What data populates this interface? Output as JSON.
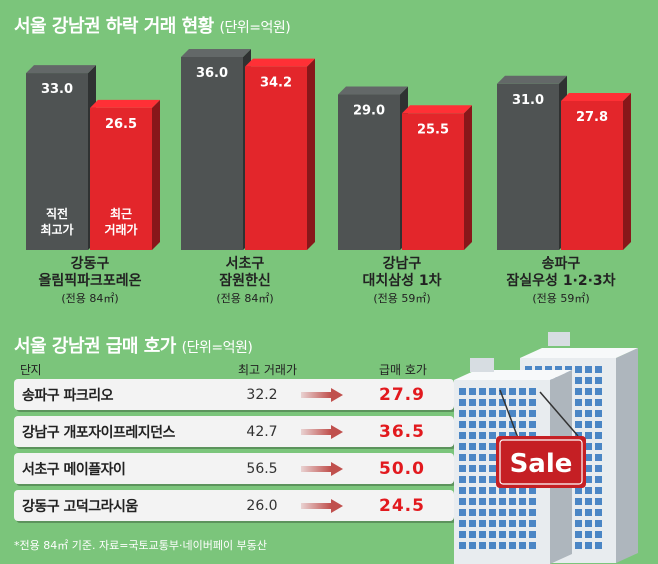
{
  "chart_title": "서울 강남권 하락 거래 현황",
  "chart_unit": "(단위=억원)",
  "chart_data": {
    "type": "bar",
    "title": "서울 강남권 하락 거래 현황",
    "unit": "단위=억원",
    "categories": [
      {
        "district": "강동구",
        "complex": "올림픽파크포레온",
        "area": "(전용 84㎡)"
      },
      {
        "district": "서초구",
        "complex": "잠원한신",
        "area": "(전용 84㎡)"
      },
      {
        "district": "강남구",
        "complex": "대치삼성 1차",
        "area": "(전용 59㎡)"
      },
      {
        "district": "송파구",
        "complex": "잠실우성 1·2·3차",
        "area": "(전용 59㎡)"
      }
    ],
    "series": [
      {
        "name": "직전 최고가",
        "label_lines": [
          "직전",
          "최고가"
        ],
        "color": "#4f5353",
        "values": [
          33.0,
          36.0,
          29.0,
          31.0
        ]
      },
      {
        "name": "최근 거래가",
        "label_lines": [
          "최근",
          "거래가"
        ],
        "color": "#e3262b",
        "values": [
          26.5,
          34.2,
          25.5,
          27.8
        ]
      }
    ]
  },
  "table": {
    "title": "서울 강남권 급매 호가",
    "unit": "(단위=억원)",
    "headers": {
      "name": "단지",
      "top": "최고 거래가",
      "sale": "급매 호가"
    },
    "rows": [
      {
        "name": "송파구 파크리오",
        "top": "32.2",
        "sale": "27.9"
      },
      {
        "name": "강남구 개포자이프레지던스",
        "top": "42.7",
        "sale": "36.5"
      },
      {
        "name": "서초구 메이플자이",
        "top": "56.5",
        "sale": "50.0"
      },
      {
        "name": "강동구 고덕그라시움",
        "top": "26.0",
        "sale": "24.5"
      }
    ]
  },
  "sale_sign": "Sale",
  "footnote": "*전용 84㎡ 기준. 자료=국토교통부·네이버페이 부동산",
  "colors": {
    "background": "#7bc57b",
    "gray_bar": "#4f5353",
    "red_bar": "#e3262b",
    "arrow": "#c0504d"
  }
}
